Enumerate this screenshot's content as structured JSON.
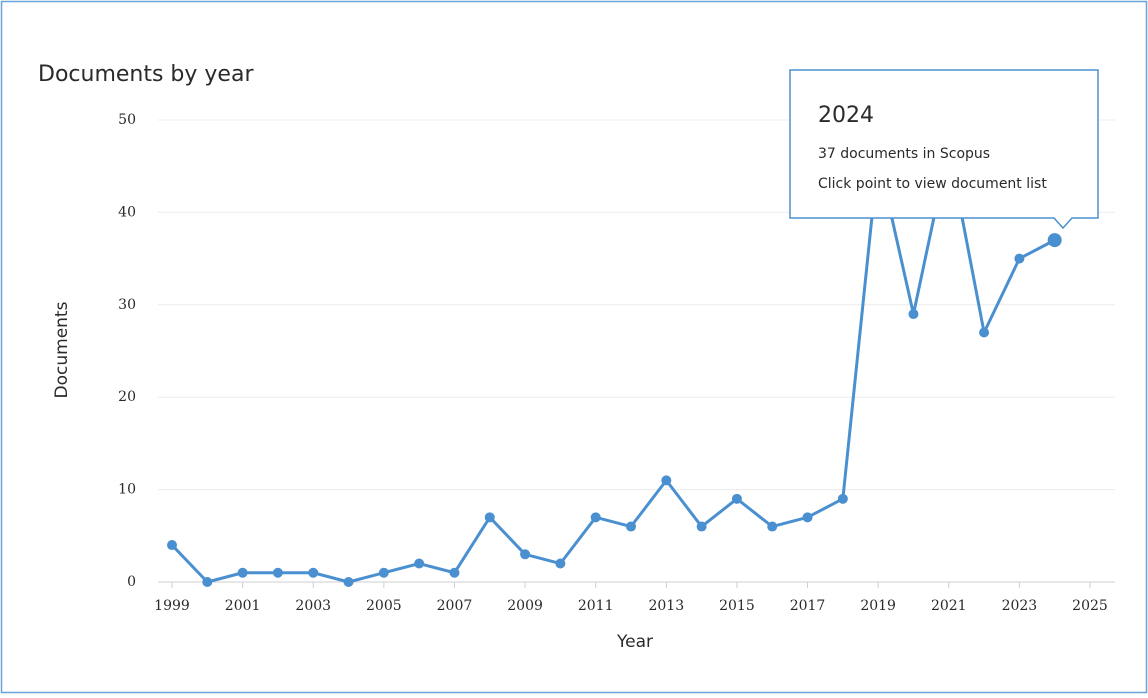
{
  "chart_data": {
    "type": "line",
    "title": "Documents by year",
    "x_label": "Year",
    "y_label": "Documents",
    "x": [
      1999,
      2000,
      2001,
      2002,
      2003,
      2004,
      2005,
      2006,
      2007,
      2008,
      2009,
      2010,
      2011,
      2012,
      2013,
      2014,
      2015,
      2016,
      2017,
      2018,
      2019,
      2020,
      2021,
      2022,
      2023,
      2024
    ],
    "values": [
      4,
      0,
      1,
      1,
      1,
      0,
      1,
      2,
      1,
      7,
      3,
      2,
      7,
      6,
      11,
      6,
      9,
      6,
      7,
      9,
      46,
      29,
      47,
      27,
      35,
      37
    ],
    "color": "#4a90d0",
    "xlim": [
      1999,
      2025
    ],
    "xticks": [
      1999,
      2001,
      2003,
      2005,
      2007,
      2009,
      2011,
      2013,
      2015,
      2017,
      2019,
      2021,
      2023,
      2025
    ],
    "ylim": [
      0,
      50
    ],
    "yticks": [
      0,
      10,
      20,
      30,
      40,
      50
    ],
    "grid": true,
    "tooltip": {
      "title": "2024",
      "lines": [
        "37 documents in Scopus",
        "Click point to view document list"
      ]
    }
  }
}
